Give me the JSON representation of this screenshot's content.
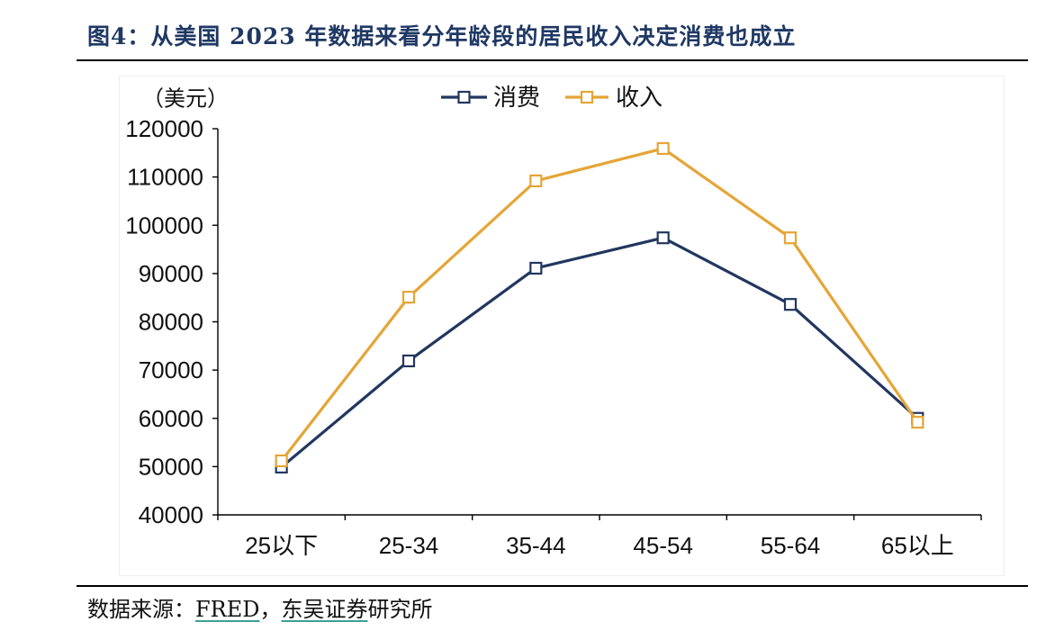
{
  "chart_data": {
    "type": "line",
    "title": "图4：从美国 2023 年数据来看分年龄段的居民收入决定消费也成立",
    "ylabel": "（美元）",
    "categories": [
      "25以下",
      "25-34",
      "35-44",
      "45-54",
      "55-64",
      "65以上"
    ],
    "series": [
      {
        "name": "消费",
        "values": [
          49900,
          71900,
          91100,
          97400,
          83600,
          60000
        ],
        "color": "#22375F"
      },
      {
        "name": "收入",
        "values": [
          51200,
          85100,
          109200,
          115900,
          97400,
          59200
        ],
        "color": "#E5A536"
      }
    ],
    "ylim": [
      40000,
      120000
    ],
    "yticks": [
      40000,
      50000,
      60000,
      70000,
      80000,
      90000,
      100000,
      110000,
      120000
    ],
    "grid": false,
    "legend": "top-center"
  },
  "source": {
    "parts": [
      "数据来源：",
      "FRED",
      "，",
      "东吴证券",
      "研究所"
    ]
  }
}
